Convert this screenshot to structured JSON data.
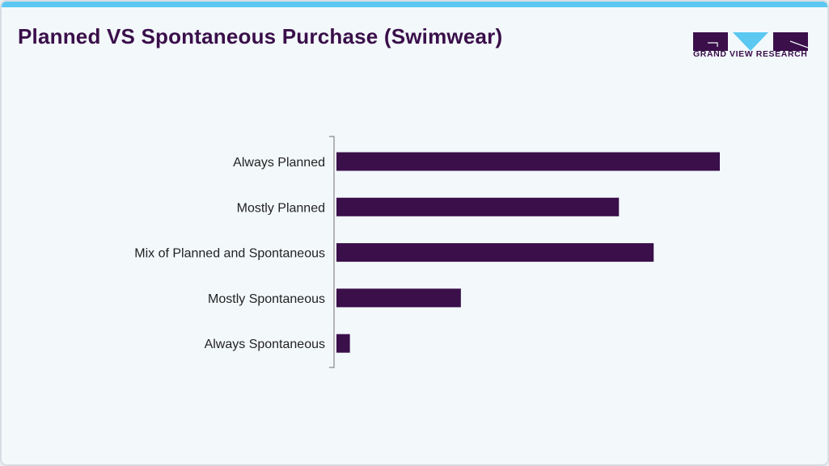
{
  "header": {
    "title": "Planned VS Spontaneous Purchase (Swimwear)",
    "logo_text": "GRAND VIEW RESEARCH"
  },
  "colors": {
    "bar": "#3a0f4a",
    "accent": "#5bc8f2",
    "axis": "#888888"
  },
  "chart_data": {
    "type": "bar",
    "orientation": "horizontal",
    "categories": [
      "Always Planned",
      "Mostly Planned",
      "Mix of Planned and Spontaneous",
      "Mostly Spontaneous",
      "Always Spontaneous"
    ],
    "values": [
      34.2,
      25.2,
      28.3,
      11.1,
      1.2
    ],
    "title": "Planned VS Spontaneous Purchase (Swimwear)",
    "xlabel": "",
    "ylabel": "",
    "xlim": [
      0,
      36
    ],
    "grid": false,
    "legend": "none"
  }
}
